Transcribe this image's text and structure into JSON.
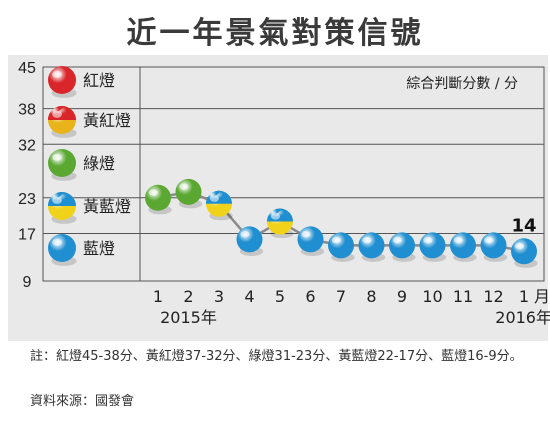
{
  "title": "近一年景氣對策信號",
  "note": "註：紅燈45-38分、黃紅燈37-32分、綠燈31-23分、黃藍燈22-17分、藍燈16-9分。",
  "source": "資料來源：國發會",
  "colors": {
    "red": "#d9262a",
    "yellow_red": "#e8b41a",
    "green": "#5aa832",
    "yellow_blue": "#f1d21b",
    "blue": "#1f8fd1",
    "line": "#8a8a8a",
    "panel": "#e9e9e9"
  },
  "chart_data": {
    "type": "line",
    "title": "近一年景氣對策信號",
    "ylabel": "綜合判斷分數 / 分",
    "y_ticks": [
      9,
      17,
      23,
      32,
      38,
      45
    ],
    "ylim": [
      9,
      45
    ],
    "signal_bands": [
      {
        "name": "紅燈",
        "range": [
          38,
          45
        ],
        "color": "red"
      },
      {
        "name": "黃紅燈",
        "range": [
          32,
          37
        ],
        "color": "yellow_red"
      },
      {
        "name": "綠燈",
        "range": [
          23,
          31
        ],
        "color": "green"
      },
      {
        "name": "黃藍燈",
        "range": [
          17,
          22
        ],
        "color": "yellow_blue"
      },
      {
        "name": "藍燈",
        "range": [
          9,
          16
        ],
        "color": "blue"
      }
    ],
    "categories": [
      "1",
      "2",
      "3",
      "4",
      "5",
      "6",
      "7",
      "8",
      "9",
      "10",
      "11",
      "12",
      "1"
    ],
    "x_unit": "月",
    "year_labels": [
      {
        "text": "2015年",
        "at_index": 1
      },
      {
        "text": "2016年",
        "at_index": 12
      }
    ],
    "values": [
      23,
      24,
      22,
      16,
      19,
      16,
      15,
      15,
      15,
      15,
      15,
      15,
      14
    ],
    "signals": [
      "green",
      "green",
      "yellow_blue",
      "blue",
      "yellow_blue",
      "blue",
      "blue",
      "blue",
      "blue",
      "blue",
      "blue",
      "blue",
      "blue"
    ],
    "annotations": [
      {
        "text": "14",
        "at_index": 12
      }
    ]
  }
}
